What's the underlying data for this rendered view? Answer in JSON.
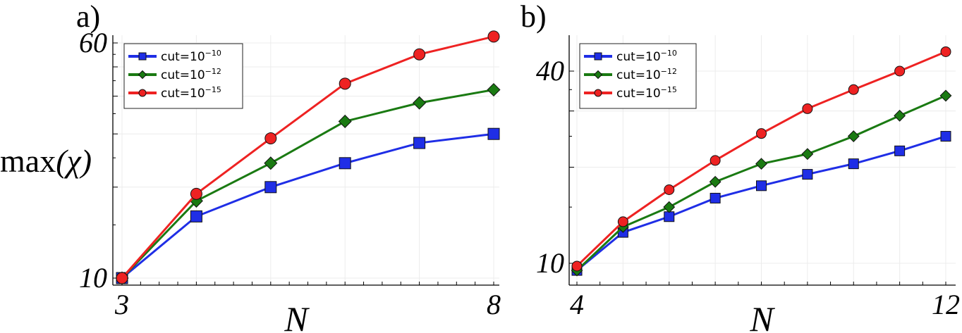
{
  "chart_data": [
    {
      "panel_label": "a)",
      "type": "line",
      "xlabel": "N",
      "ylabel_prefix": "max",
      "ylabel_var": "(χ)",
      "x_ticks": [
        "3",
        "8"
      ],
      "y_ticks": [
        "10",
        "60"
      ],
      "x": [
        3,
        4,
        5,
        6,
        7,
        8
      ],
      "xlim": [
        3,
        8
      ],
      "ylim": [
        10,
        60
      ],
      "yscale": "log",
      "grid": true,
      "legend_position": "top-left",
      "series": [
        {
          "name": "cut=10",
          "exponent": "−10",
          "color": "#1f2ee6",
          "marker": "square",
          "values": [
            10,
            16,
            20,
            24,
            28,
            30
          ]
        },
        {
          "name": "cut=10",
          "exponent": "−12",
          "color": "#1a7a12",
          "marker": "diamond",
          "values": [
            10,
            18,
            24,
            33,
            38,
            42
          ]
        },
        {
          "name": "cut=10",
          "exponent": "−15",
          "color": "#ee2222",
          "marker": "circle",
          "values": [
            10,
            19,
            29,
            44,
            55,
            63
          ]
        }
      ]
    },
    {
      "panel_label": "b)",
      "type": "line",
      "xlabel": "N",
      "x_ticks": [
        "4",
        "12"
      ],
      "y_ticks": [
        "10",
        "40"
      ],
      "x": [
        4,
        5,
        6,
        7,
        8,
        9,
        10,
        11,
        12
      ],
      "xlim": [
        4,
        12
      ],
      "ylim": [
        9.2,
        48
      ],
      "yscale": "log",
      "grid": true,
      "legend_position": "top-left",
      "series": [
        {
          "name": "cut=10",
          "exponent": "−10",
          "color": "#1f2ee6",
          "marker": "square",
          "values": [
            9.5,
            12.5,
            14,
            16,
            17.5,
            19,
            20.5,
            22.5,
            25
          ]
        },
        {
          "name": "cut=10",
          "exponent": "−12",
          "color": "#1a7a12",
          "marker": "diamond",
          "values": [
            9.5,
            13,
            15,
            18,
            20.5,
            22,
            25,
            29,
            33.5
          ]
        },
        {
          "name": "cut=10",
          "exponent": "−15",
          "color": "#ee2222",
          "marker": "circle",
          "values": [
            9.8,
            13.5,
            17,
            21,
            25.5,
            30.5,
            35,
            40,
            46
          ]
        }
      ]
    }
  ]
}
